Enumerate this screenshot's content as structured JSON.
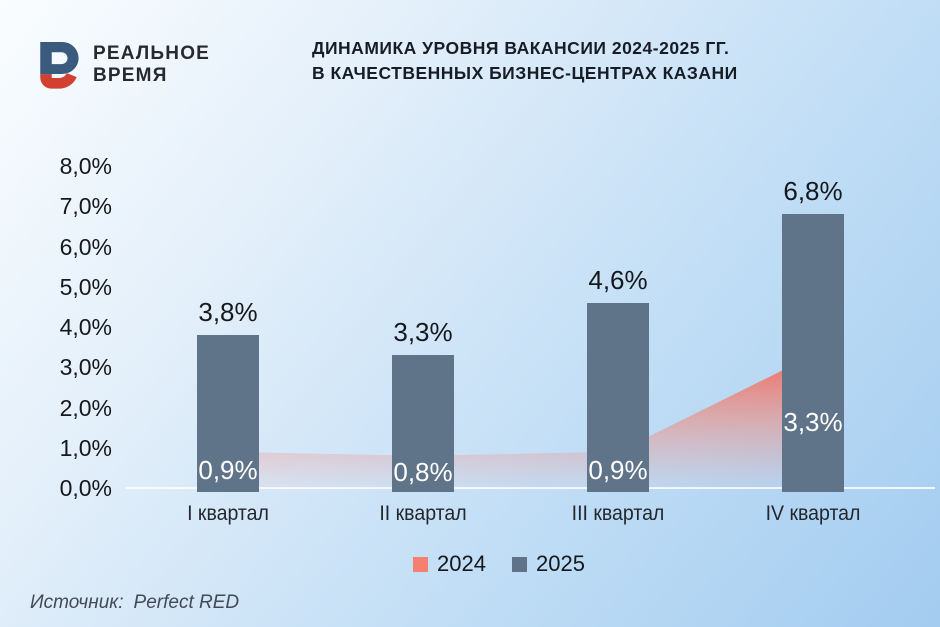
{
  "logo": {
    "line1": "РЕАЛЬНОЕ",
    "line2": "ВРЕМЯ",
    "mark_colors": {
      "navy": "#3a5a7e",
      "red": "#d2402f"
    }
  },
  "title_lines": {
    "0": "ДИНАМИКА УРОВНЯ ВАКАНСИИ 2024-2025 ГГ.",
    "1": "В КАЧЕСТВЕННЫХ БИЗНЕС-ЦЕНТРАХ КАЗАНИ"
  },
  "source": {
    "label": "Источник:",
    "value": "Perfect RED"
  },
  "colors": {
    "bar_2025": "#5f7389",
    "area_2024": "#f5806f",
    "area_gradient_top": "#f2665a",
    "axis_line": "#ffffff",
    "text_dark": "#15181d",
    "text_white": "#ffffff"
  },
  "chart_data": {
    "type": "bar+area",
    "title": "ДИНАМИКА УРОВНЯ ВАКАНСИИ 2024-2025 ГГ. В КАЧЕСТВЕННЫХ БИЗНЕС-ЦЕНТРАХ КАЗАНИ",
    "categories": [
      "I квартал",
      "II квартал",
      "III квартал",
      "IV квартал"
    ],
    "series": [
      {
        "name": "2024",
        "type": "area",
        "color": "#f5806f",
        "values": [
          0.9,
          0.8,
          0.9,
          3.3
        ],
        "labels": [
          "0,9%",
          "0,8%",
          "0,9%",
          "3,3%"
        ]
      },
      {
        "name": "2025",
        "type": "bar",
        "color": "#5f7389",
        "values": [
          3.8,
          3.3,
          4.6,
          6.8
        ],
        "labels": [
          "3,8%",
          "3,3%",
          "4,6%",
          "6,8%"
        ]
      }
    ],
    "y_axis": {
      "min": 0,
      "max": 8,
      "step": 1,
      "tick_labels": [
        "0,0%",
        "1,0%",
        "2,0%",
        "3,0%",
        "4,0%",
        "5,0%",
        "6,0%",
        "7,0%",
        "8,0%"
      ]
    },
    "grid": false,
    "legend_position": "bottom",
    "legend": [
      {
        "label": "2024",
        "color": "#f5806f"
      },
      {
        "label": "2025",
        "color": "#5f7389"
      }
    ]
  }
}
